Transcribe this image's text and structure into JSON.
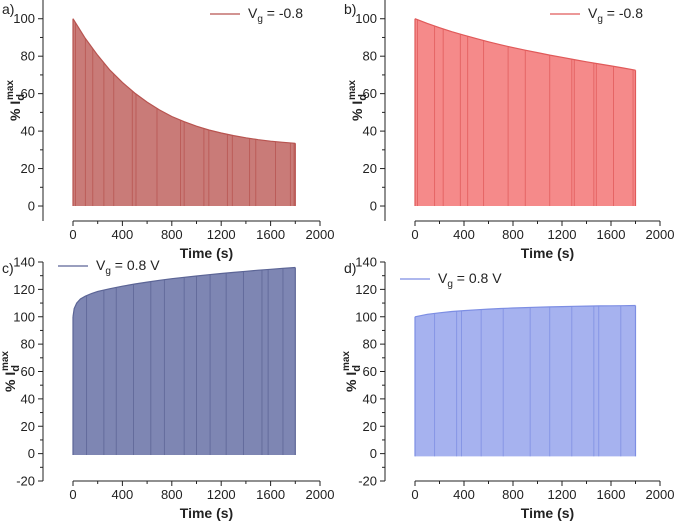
{
  "chart_data": [
    {
      "panel": "a)",
      "type": "area",
      "legend": {
        "label": "V",
        "subscript": "g",
        "suffix": " = -0.8",
        "placement": "top-right"
      },
      "color": "#b85450",
      "fill": "#c97b78",
      "xlabel": "Time (s)",
      "ylabel": {
        "prefix": "% I",
        "sub": "d",
        "sup": "max"
      },
      "xlim": [
        0,
        2000
      ],
      "ylim": [
        -8,
        110
      ],
      "xticks": [
        0,
        400,
        800,
        1200,
        1600,
        2000
      ],
      "xtick_labels": [
        "0",
        "400",
        "800",
        "1200",
        "1600",
        "2000"
      ],
      "yticks": [
        0,
        20,
        40,
        60,
        80,
        100
      ],
      "ytick_labels": [
        "0",
        "20",
        "40",
        "60",
        "80",
        "100"
      ],
      "x": [
        0,
        100,
        200,
        300,
        400,
        500,
        600,
        700,
        800,
        900,
        1000,
        1100,
        1200,
        1300,
        1400,
        1500,
        1600,
        1700,
        1800
      ],
      "y": [
        100,
        89.5,
        80.5,
        72.5,
        66,
        60.3,
        55.5,
        51.3,
        47.8,
        45,
        42.6,
        40.6,
        39,
        37.6,
        36.4,
        35.4,
        34.6,
        34,
        33.5
      ],
      "pulse_x": [
        20,
        100,
        160,
        250,
        330,
        480,
        510,
        680,
        870,
        900,
        1060,
        1100,
        1250,
        1290,
        1430,
        1480,
        1640,
        1760,
        1790
      ]
    },
    {
      "panel": "b)",
      "type": "area",
      "legend": {
        "label": "V",
        "subscript": "g",
        "suffix": " = -0.8",
        "placement": "top-right"
      },
      "color": "#e05a5a",
      "fill": "#f58a8a",
      "xlabel": "Time (s)",
      "ylabel": {
        "prefix": "% I",
        "sub": "d",
        "sup": "max"
      },
      "xlim": [
        0,
        2000
      ],
      "ylim": [
        -8,
        110
      ],
      "xticks": [
        0,
        400,
        800,
        1200,
        1600,
        2000
      ],
      "xtick_labels": [
        "0",
        "400",
        "800",
        "1200",
        "1600",
        "2000"
      ],
      "yticks": [
        0,
        20,
        40,
        60,
        80,
        100
      ],
      "ytick_labels": [
        "0",
        "20",
        "40",
        "60",
        "80",
        "100"
      ],
      "x": [
        0,
        100,
        200,
        300,
        400,
        500,
        600,
        700,
        800,
        900,
        1000,
        1100,
        1200,
        1300,
        1400,
        1500,
        1600,
        1700,
        1800
      ],
      "y": [
        100,
        97.5,
        95.2,
        93.1,
        91.2,
        89.4,
        87.7,
        86.1,
        84.6,
        83.2,
        81.9,
        80.6,
        79.4,
        78.2,
        77,
        75.9,
        74.8,
        73.7,
        72.5
      ],
      "pulse_x": [
        20,
        160,
        230,
        370,
        430,
        560,
        760,
        900,
        1100,
        1280,
        1300,
        1460,
        1480,
        1620,
        1780
      ]
    },
    {
      "panel": "c)",
      "type": "area",
      "legend": {
        "label": "V",
        "subscript": "g",
        "suffix": " = 0.8 V",
        "placement": "top-left"
      },
      "color": "#5c6596",
      "fill": "#7e86b3",
      "xlabel": "Time (s)",
      "ylabel": {
        "prefix": "% I",
        "sub": "d",
        "sup": "max"
      },
      "xlim": [
        0,
        2000
      ],
      "ylim": [
        -20,
        140
      ],
      "xticks": [
        0,
        400,
        800,
        1200,
        1600,
        2000
      ],
      "xtick_labels": [
        "0",
        "400",
        "800",
        "1200",
        "1600",
        "2000"
      ],
      "yticks": [
        -20,
        0,
        20,
        40,
        60,
        80,
        100,
        120,
        140
      ],
      "ytick_labels": [
        "-20",
        "0",
        "20",
        "40",
        "60",
        "80",
        "100",
        "120",
        "140"
      ],
      "x": [
        0,
        10,
        30,
        60,
        100,
        150,
        200,
        300,
        400,
        500,
        600,
        700,
        800,
        900,
        1000,
        1100,
        1200,
        1300,
        1400,
        1500,
        1600,
        1700,
        1800
      ],
      "y": [
        100,
        106,
        110,
        113,
        115,
        117,
        118.5,
        120.5,
        122.3,
        123.9,
        125.3,
        126.6,
        127.8,
        128.8,
        129.8,
        130.7,
        131.6,
        132.4,
        133.2,
        134,
        134.7,
        135.4,
        136
      ],
      "y_bottom": -1,
      "pulse_x": [
        110,
        250,
        350,
        490,
        630,
        740,
        900,
        1000,
        1110,
        1240,
        1380,
        1530,
        1580,
        1700
      ]
    },
    {
      "panel": "d)",
      "type": "area",
      "legend": {
        "label": "V",
        "subscript": "g",
        "suffix": " = 0.8 V",
        "placement": "top-left"
      },
      "color": "#7d8ee3",
      "fill": "#a6b2ef",
      "xlabel": "Time (s)",
      "ylabel": {
        "prefix": "% I",
        "sub": "d",
        "sup": "max"
      },
      "xlim": [
        0,
        2000
      ],
      "ylim": [
        -20,
        140
      ],
      "xticks": [
        0,
        400,
        800,
        1200,
        1600,
        2000
      ],
      "xtick_labels": [
        "0",
        "400",
        "800",
        "1200",
        "1600",
        "2000"
      ],
      "yticks": [
        -20,
        0,
        20,
        40,
        60,
        80,
        100,
        120,
        140
      ],
      "ytick_labels": [
        "-20",
        "0",
        "20",
        "40",
        "60",
        "80",
        "100",
        "120",
        "140"
      ],
      "x": [
        0,
        100,
        200,
        300,
        400,
        500,
        600,
        700,
        800,
        900,
        1000,
        1100,
        1200,
        1300,
        1400,
        1500,
        1600,
        1700,
        1800
      ],
      "y": [
        100,
        101.8,
        102.9,
        103.8,
        104.5,
        105.1,
        105.6,
        106,
        106.4,
        106.7,
        107,
        107.2,
        107.4,
        107.6,
        107.8,
        107.9,
        108,
        108.1,
        108.2
      ],
      "y_bottom": -2,
      "pulse_x": [
        160,
        340,
        380,
        540,
        720,
        940,
        1100,
        1280,
        1460,
        1500,
        1680
      ]
    }
  ]
}
